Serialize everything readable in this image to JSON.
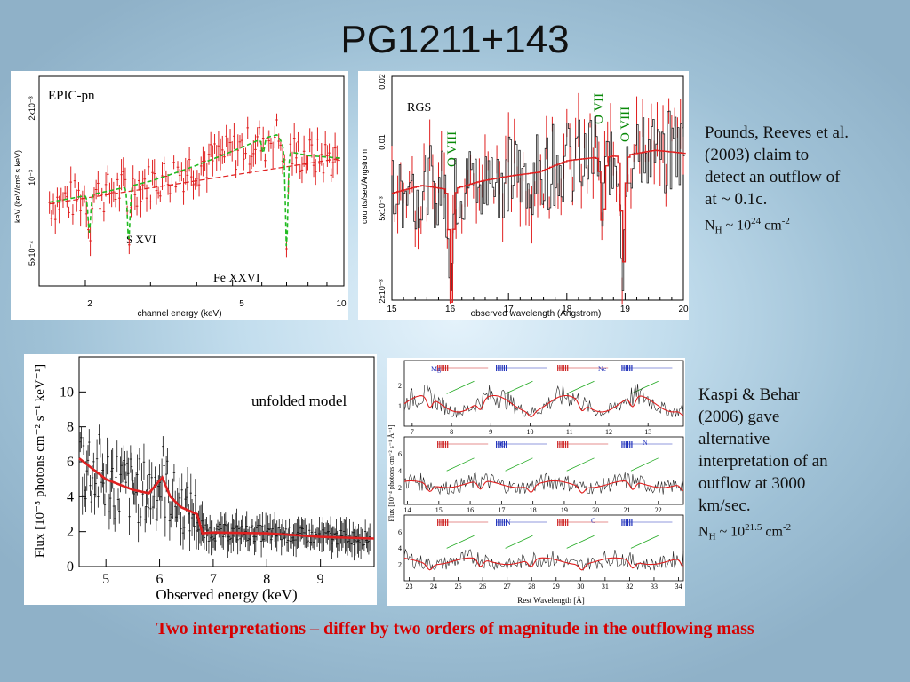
{
  "slide": {
    "title": "PG1211+143",
    "caption": "Two interpretations – differ by two orders of magnitude in the outflowing mass"
  },
  "text_blocks": {
    "pounds": {
      "line1": "Pounds, Reeves et al.",
      "line2": "(2003) claim to",
      "line3": "detect an outflow of",
      "line4": "at ~ 0.1c.",
      "nh_prefix": "N",
      "nh_sub": "H",
      "nh_mid": " ~ 10",
      "nh_exp": "24",
      "nh_unit": " cm",
      "nh_unit_exp": "-2"
    },
    "kaspi": {
      "line1": "Kaspi & Behar",
      "line2": "(2006) gave",
      "line3": "alternative",
      "line4": "interpretation of an",
      "line5": "outflow at 3000",
      "line6": "km/sec.",
      "nh_prefix": "N",
      "nh_sub": "H",
      "nh_mid": " ~ 10",
      "nh_exp": "21.5",
      "nh_unit": " cm",
      "nh_unit_exp": "-2"
    }
  },
  "colors": {
    "data_red": "#e02020",
    "model_green": "#22bb22",
    "line_label_green": "#0a8a0a",
    "caption_red": "#d80000"
  },
  "chart_data": [
    {
      "type": "line",
      "panel": "epic",
      "title": "EPIC-pn",
      "xlabel": "channel energy (keV)",
      "ylabel": "keV  (keV/cm² s keV)",
      "x_ticks": [
        "2",
        "5",
        "10"
      ],
      "y_ticks": [
        "2x10⁻³",
        "10⁻³",
        "5x10⁻⁴"
      ],
      "annotations": [
        "S XVI",
        "Fe XXVI"
      ],
      "xscale": "log",
      "xlim": [
        1.5,
        10
      ],
      "series": [
        {
          "x": [
            1.5,
            2.0,
            2.5,
            3.0,
            4.0,
            5.0,
            6.0,
            6.6,
            7.0,
            8.0,
            10.0
          ],
          "y": [
            0.00082,
            0.00088,
            0.00094,
            0.001,
            0.00115,
            0.0013,
            0.00145,
            0.0015,
            0.0013,
            0.00125,
            0.00122
          ]
        }
      ]
    },
    {
      "type": "line",
      "panel": "rgs",
      "title": "RGS",
      "xlabel": "observed wavelength (Angstrom)",
      "ylabel": "counts/sec/Angstrom",
      "x_ticks": [
        "15",
        "16",
        "17",
        "18",
        "19",
        "20"
      ],
      "y_ticks": [
        "0.02",
        "0.01",
        "5x10⁻³",
        "2x10⁻³"
      ],
      "annotations": [
        "O VIII",
        "O VII",
        "O VIII"
      ],
      "xlim": [
        15,
        20
      ],
      "series": [
        {
          "x": [
            15.0,
            15.5,
            16.0,
            16.5,
            17.0,
            17.5,
            18.0,
            18.5,
            19.0,
            19.5,
            20.0
          ],
          "y": [
            0.006,
            0.0065,
            0.0062,
            0.0068,
            0.0072,
            0.0075,
            0.0085,
            0.0088,
            0.009,
            0.0095,
            0.0092
          ]
        }
      ]
    },
    {
      "type": "line",
      "panel": "unfolded",
      "title": "unfolded model",
      "xlabel": "Observed energy (keV)",
      "ylabel": "Flux [10⁻⁵ photons cm⁻² s⁻¹ keV⁻¹]",
      "x_ticks": [
        "5",
        "6",
        "7",
        "8",
        "9"
      ],
      "y_ticks": [
        "0",
        "2",
        "4",
        "6",
        "8",
        "10"
      ],
      "xlim": [
        4.5,
        10
      ],
      "ylim": [
        0,
        12
      ],
      "series": [
        {
          "x": [
            4.5,
            5.0,
            5.5,
            5.8,
            6.05,
            6.2,
            6.4,
            6.7,
            6.8,
            7.0,
            8.0,
            9.0,
            10.0
          ],
          "y": [
            6.2,
            5.0,
            4.4,
            4.2,
            5.1,
            4.0,
            3.4,
            3.0,
            1.9,
            1.95,
            1.9,
            1.7,
            1.6
          ]
        }
      ]
    },
    {
      "type": "line",
      "panel": "kaspi",
      "xlabel": "Rest Wavelength [Å]",
      "ylabel": "Flux [10⁻⁴ photons cm⁻² s⁻¹ Å⁻¹]",
      "annotations": [
        "Mg",
        "Ne",
        "O",
        "N",
        "N",
        "C"
      ],
      "subpanels": [
        {
          "x_ticks": [
            "7",
            "8",
            "9",
            "10",
            "11",
            "12",
            "13"
          ],
          "y_ticks": [
            "1",
            "2"
          ],
          "xlim": [
            6.8,
            13.9
          ]
        },
        {
          "x_ticks": [
            "14",
            "15",
            "16",
            "17",
            "18",
            "19",
            "20",
            "21",
            "22"
          ],
          "y_ticks": [
            "2",
            "4",
            "6"
          ],
          "xlim": [
            13.9,
            22.8
          ]
        },
        {
          "x_ticks": [
            "23",
            "24",
            "25",
            "26",
            "27",
            "28",
            "29",
            "30",
            "31",
            "32",
            "33",
            "34"
          ],
          "y_ticks": [
            "2",
            "4",
            "6"
          ],
          "xlim": [
            22.8,
            34.2
          ]
        }
      ]
    }
  ]
}
